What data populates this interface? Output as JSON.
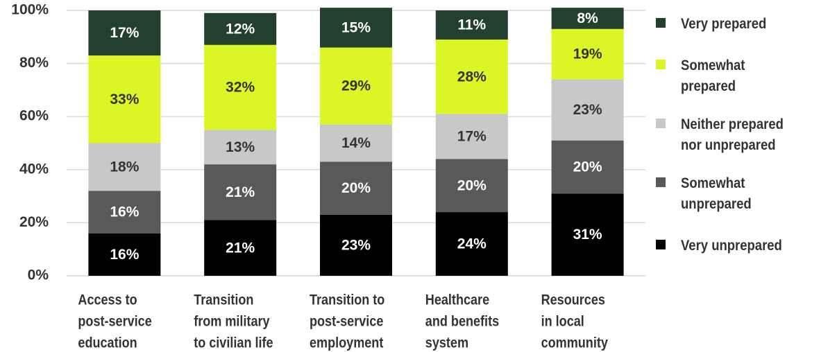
{
  "chart_data": {
    "type": "stacked_bar",
    "categories": [
      [
        "Access to",
        "post-service",
        "education"
      ],
      [
        "Transition",
        "from military",
        "to civilian life"
      ],
      [
        "Transition to",
        "post-service",
        "employment"
      ],
      [
        "Healthcare",
        "and benefits",
        "system"
      ],
      [
        "Resources",
        "in local",
        "community"
      ]
    ],
    "series": [
      {
        "name": "Very unprepared",
        "color": "#000000",
        "values": [
          16,
          21,
          23,
          24,
          31
        ],
        "value_labels": [
          "16%",
          "21%",
          "23%",
          "24%",
          "31%"
        ]
      },
      {
        "name": "Somewhat unprepared",
        "color": "#595959",
        "values": [
          16,
          21,
          20,
          20,
          20
        ],
        "value_labels": [
          "16%",
          "21%",
          "20%",
          "20%",
          "20%"
        ]
      },
      {
        "name": "Neither prepared nor unprepared",
        "color": "#c8c8c8",
        "values": [
          18,
          13,
          14,
          17,
          23
        ],
        "value_labels": [
          "18%",
          "13%",
          "14%",
          "17%",
          "23%"
        ]
      },
      {
        "name": "Somewhat prepared",
        "color": "#dcf527",
        "values": [
          33,
          32,
          29,
          28,
          19
        ],
        "value_labels": [
          "33%",
          "32%",
          "29%",
          "28%",
          "19%"
        ]
      },
      {
        "name": "Very prepared",
        "color": "#23402e",
        "values": [
          17,
          12,
          15,
          11,
          8
        ],
        "value_labels": [
          "17%",
          "12%",
          "15%",
          "11%",
          "8%"
        ]
      }
    ],
    "ylim": [
      0,
      100
    ],
    "yticks": [
      {
        "value": 0,
        "label": "0%"
      },
      {
        "value": 20,
        "label": "20%"
      },
      {
        "value": 40,
        "label": "40%"
      },
      {
        "value": 60,
        "label": "60%"
      },
      {
        "value": 80,
        "label": "80%"
      },
      {
        "value": 100,
        "label": "100%"
      }
    ],
    "grid": true,
    "legend": "right"
  }
}
